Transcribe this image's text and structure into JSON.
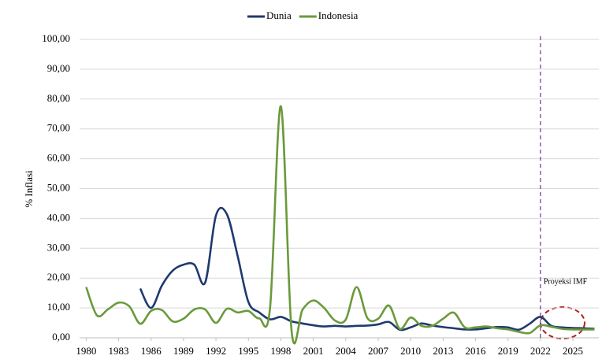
{
  "chart_data": {
    "type": "line",
    "y_label": "% Inflasi",
    "annotation": "Proyeksi IMF",
    "projection_line": 2022,
    "x": [
      1980,
      1981,
      1982,
      1983,
      1984,
      1985,
      1986,
      1987,
      1988,
      1989,
      1990,
      1991,
      1992,
      1993,
      1994,
      1995,
      1996,
      1997,
      1998,
      1999,
      2000,
      2001,
      2002,
      2003,
      2004,
      2005,
      2006,
      2007,
      2008,
      2009,
      2010,
      2011,
      2012,
      2013,
      2014,
      2015,
      2016,
      2017,
      2018,
      2019,
      2020,
      2021,
      2022,
      2023,
      2024,
      2025,
      2026,
      2027
    ],
    "series": [
      {
        "name": "Dunia",
        "color": "#1f3a6e",
        "values": [
          null,
          null,
          null,
          null,
          null,
          16.5,
          10,
          17.5,
          22.5,
          24.5,
          24.5,
          18.5,
          41,
          41.5,
          27.5,
          12,
          8.5,
          6.2,
          7,
          5.5,
          4.8,
          4.2,
          3.8,
          4,
          3.8,
          4,
          4.1,
          4.5,
          5.3,
          2.7,
          3.5,
          4.8,
          4.1,
          3.6,
          3.2,
          2.8,
          2.8,
          3.2,
          3.6,
          3.5,
          2.7,
          4.7,
          7,
          4,
          3.5,
          3.3,
          3.2,
          3
        ]
      },
      {
        "name": "Indonesia",
        "color": "#6a9a3c",
        "values": [
          17,
          7.5,
          9.5,
          11.8,
          10.5,
          4.7,
          9,
          9.3,
          5.5,
          6.4,
          9.5,
          9.5,
          5,
          9.7,
          8.5,
          9,
          6.5,
          10,
          77.6,
          2,
          9.4,
          12.5,
          10,
          5.8,
          6.1,
          17,
          6.6,
          6.4,
          10.8,
          3,
          6.8,
          4,
          4,
          6.4,
          8.4,
          3.5,
          3.5,
          3.8,
          3.2,
          2.8,
          2,
          1.6,
          4.2,
          3.7,
          3,
          2.8,
          2.8,
          2.8
        ]
      }
    ],
    "xlim": [
      1979.1,
      2027.4
    ],
    "xticks": [
      1980,
      1983,
      1986,
      1989,
      1992,
      1995,
      1998,
      2001,
      2004,
      2007,
      2010,
      2013,
      2016,
      2019,
      2022,
      2025
    ],
    "ylim": [
      0,
      100
    ],
    "yticks": [
      {
        "value": 0,
        "label": "0,00"
      },
      {
        "value": 10,
        "label": "10,00"
      },
      {
        "value": 20,
        "label": "20,00"
      },
      {
        "value": 30,
        "label": "30,00"
      },
      {
        "value": 40,
        "label": "40,00"
      },
      {
        "value": 50,
        "label": "50,00"
      },
      {
        "value": 60,
        "label": "60,00"
      },
      {
        "value": 70,
        "label": "70,00"
      },
      {
        "value": 80,
        "label": "80,00"
      },
      {
        "value": 90,
        "label": "90,00"
      },
      {
        "value": 100,
        "label": "100,00"
      }
    ],
    "grid": true,
    "legend": "top"
  }
}
